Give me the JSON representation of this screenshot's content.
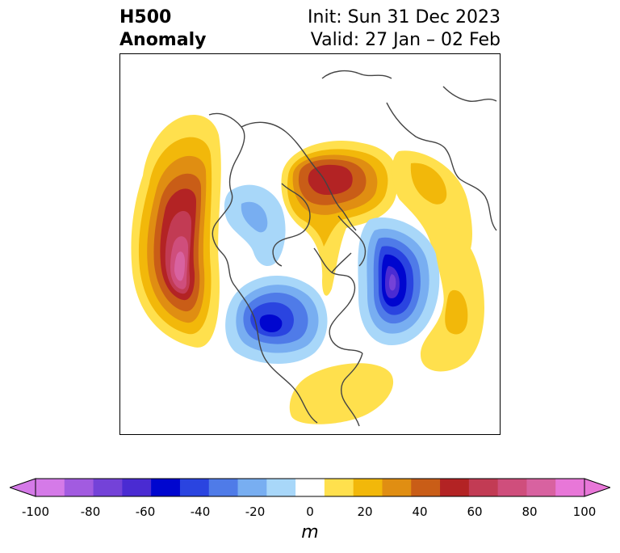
{
  "header": {
    "title_line1": "H500",
    "title_line2": "Anomaly",
    "init": "Init: Sun 31 Dec 2023",
    "valid": "Valid: 27 Jan – 02 Feb"
  },
  "map": {
    "projection": "north-polar-stereographic",
    "features": [
      {
        "name": "pacific-ridge",
        "sign": "positive",
        "peak_anomaly_m": 95
      },
      {
        "name": "siberia-arctic-ridge",
        "sign": "positive",
        "peak_anomaly_m": 60
      },
      {
        "name": "north-atlantic-trough",
        "sign": "negative",
        "peak_anomaly_m": -75
      },
      {
        "name": "western-north-america-trough",
        "sign": "negative",
        "peak_anomaly_m": -55
      },
      {
        "name": "alaska-trough",
        "sign": "negative",
        "peak_anomaly_m": -25
      },
      {
        "name": "southeast-us-ridge",
        "sign": "positive",
        "peak_anomaly_m": 20
      },
      {
        "name": "eurasia-ridge",
        "sign": "positive",
        "peak_anomaly_m": 20
      },
      {
        "name": "eastern-atlantic-ridge",
        "sign": "positive",
        "peak_anomaly_m": 25
      }
    ]
  },
  "colorbar": {
    "unit": "m",
    "levels": [
      -100,
      -90,
      -80,
      -70,
      -60,
      -50,
      -40,
      -30,
      -20,
      -10,
      10,
      20,
      30,
      40,
      50,
      60,
      70,
      80,
      90,
      100
    ],
    "colors": [
      "#d57ae8",
      "#a25be0",
      "#7442d8",
      "#4a2bd2",
      "#0006cf",
      "#2a44e0",
      "#4f7be8",
      "#78aef1",
      "#a8d7f9",
      "#ffffff",
      "#ffe04d",
      "#f2b80a",
      "#e08e12",
      "#c95d17",
      "#b32324",
      "#c23b54",
      "#cf4e7c",
      "#d862a0",
      "#e877d8"
    ],
    "ticks": [
      "-100",
      "-80",
      "-60",
      "-40",
      "-20",
      "0",
      "20",
      "40",
      "60",
      "80",
      "100"
    ]
  }
}
